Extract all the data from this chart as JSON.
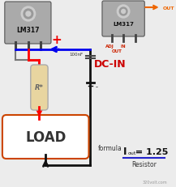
{
  "bg_color": "#ececec",
  "dc_in_text": "DC-IN",
  "formula_label": "formula",
  "iout_text": "I",
  "out_sub": "out",
  "equals_125": " = 1.25",
  "resistor_label": "Resistor",
  "load_text": "LOAD",
  "r_label": "R*",
  "capacitor_label": "100nF",
  "lm317_label": "LM317",
  "plus_label": "+",
  "minus_label": "-",
  "adj_label": "ADJ",
  "in_label": "IN",
  "out_label": "OUT",
  "out_arrow_label": "OUT",
  "watermark": "320volt.com",
  "line_blue": "#0000ee",
  "line_red": "#ff0000",
  "line_black": "#111111",
  "line_gray": "#777777",
  "dc_in_color": "#cc0000",
  "load_box_edge": "#cc4400",
  "resistor_fill": "#e8d5a0",
  "resistor_edge": "#aaaaaa",
  "formula_line_color": "#2222cc",
  "plus_color": "#ee0000",
  "out_arrow_color": "#ee6600",
  "chip_fill": "#aaaaaa",
  "chip_edge": "#555555",
  "pin_color": "#444444"
}
